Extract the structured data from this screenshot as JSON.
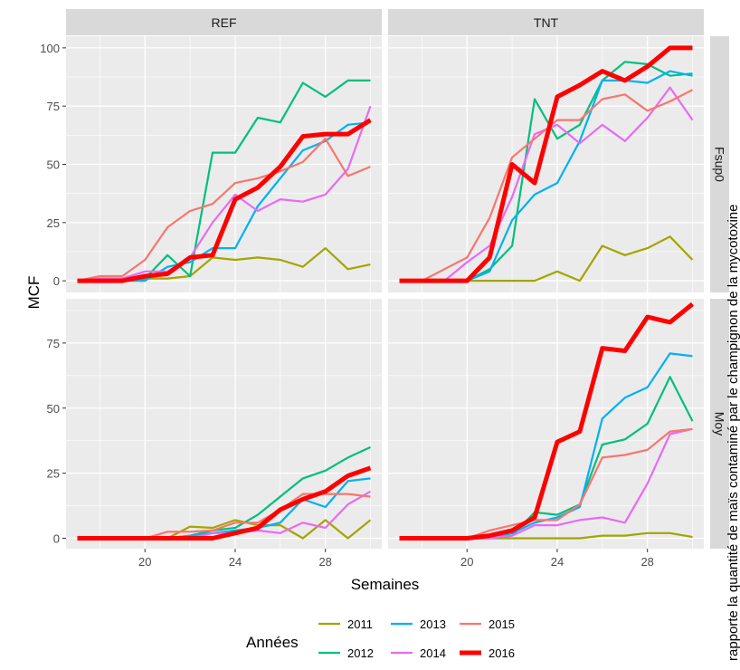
{
  "chart_data": {
    "type": "line",
    "xlabel": "Semaines",
    "ylabel": "MCF",
    "x": [
      17,
      18,
      19,
      20,
      21,
      22,
      23,
      24,
      25,
      26,
      27,
      28,
      29,
      30
    ],
    "x_ticks": [
      20,
      24,
      28
    ],
    "xlim": [
      16.5,
      30.5
    ],
    "facet_columns": [
      "REF",
      "TNT"
    ],
    "facet_rows": [
      "Fsup0",
      "Moy"
    ],
    "grid": true,
    "legend": {
      "title": "Années",
      "position": "bottom",
      "entries": [
        "2011",
        "2012",
        "2013",
        "2014",
        "2015",
        "2016"
      ]
    },
    "colors": {
      "2011": "#a3a500",
      "2012": "#00bf7d",
      "2013": "#00b0f6",
      "2014": "#e76bf3",
      "2015": "#f8766d",
      "2016": "#ff0000",
      "panel_bg": "#ebebeb",
      "strip_bg": "#d9d9d9",
      "grid": "#ffffff"
    },
    "panels": [
      {
        "column": "REF",
        "row": "Fsup0",
        "ylim": [
          -5,
          105
        ],
        "y_ticks": [
          0,
          25,
          50,
          75,
          100
        ],
        "series": [
          {
            "name": "2011",
            "values": [
              0,
              0,
              0,
              1,
              1,
              2,
              10,
              9,
              10,
              9,
              6,
              14,
              5,
              7
            ]
          },
          {
            "name": "2012",
            "values": [
              0,
              0,
              0,
              1,
              11,
              2,
              55,
              55,
              70,
              68,
              85,
              79,
              86,
              86
            ]
          },
          {
            "name": "2013",
            "values": [
              0,
              0,
              0,
              0,
              6,
              8,
              14,
              14,
              32,
              44,
              56,
              60,
              67,
              68
            ]
          },
          {
            "name": "2014",
            "values": [
              0,
              1,
              1,
              4,
              4,
              10,
              25,
              37,
              30,
              35,
              34,
              37,
              48,
              75
            ]
          },
          {
            "name": "2015",
            "values": [
              0,
              2,
              2,
              9,
              23,
              30,
              33,
              42,
              44,
              47,
              51,
              61,
              45,
              49
            ]
          },
          {
            "name": "2016",
            "values": [
              0,
              0,
              0,
              2,
              3,
              10,
              11,
              35,
              40,
              49,
              62,
              63,
              63,
              69
            ]
          }
        ]
      },
      {
        "column": "TNT",
        "row": "Fsup0",
        "ylim": [
          -5,
          105
        ],
        "y_ticks": [
          0,
          25,
          50,
          75,
          100
        ],
        "series": [
          {
            "name": "2011",
            "values": [
              0,
              0,
              0,
              0,
              0,
              0,
              0,
              4,
              0,
              15,
              11,
              14,
              19,
              9
            ]
          },
          {
            "name": "2012",
            "values": [
              0,
              0,
              0,
              0,
              5,
              15,
              78,
              61,
              67,
              86,
              94,
              93,
              88,
              89
            ]
          },
          {
            "name": "2013",
            "values": [
              0,
              0,
              0,
              0,
              4,
              26,
              37,
              42,
              60,
              86,
              86,
              85,
              90,
              88
            ]
          },
          {
            "name": "2014",
            "values": [
              0,
              0,
              0,
              8,
              15,
              36,
              63,
              67,
              59,
              67,
              60,
              70,
              83,
              69
            ]
          },
          {
            "name": "2015",
            "values": [
              0,
              0,
              5,
              10,
              27,
              53,
              61,
              69,
              69,
              78,
              80,
              73,
              77,
              82
            ]
          },
          {
            "name": "2016",
            "values": [
              0,
              0,
              0,
              0,
              10,
              50,
              42,
              79,
              84,
              90,
              86,
              92,
              100,
              100
            ]
          }
        ]
      },
      {
        "column": "REF",
        "row": "Moy",
        "ylim": [
          -4,
          92
        ],
        "y_ticks": [
          0,
          25,
          50,
          75
        ],
        "series": [
          {
            "name": "2011",
            "values": [
              0,
              0,
              0,
              0,
              0,
              4.5,
              4,
              7,
              5,
              5,
              0,
              7,
              0,
              7
            ]
          },
          {
            "name": "2012",
            "values": [
              0,
              0,
              0,
              0,
              0,
              1,
              3,
              4,
              9,
              16,
              23,
              26,
              31,
              35
            ]
          },
          {
            "name": "2013",
            "values": [
              0,
              0,
              0,
              0,
              0,
              1,
              2,
              3,
              4,
              6,
              15,
              12,
              22,
              23
            ]
          },
          {
            "name": "2014",
            "values": [
              0,
              0,
              0,
              0,
              0,
              0,
              2,
              2,
              3,
              2,
              6,
              4,
              13,
              18
            ]
          },
          {
            "name": "2015",
            "values": [
              0,
              0,
              0,
              0,
              2.5,
              2.5,
              3,
              6,
              6,
              11,
              17,
              17,
              17,
              16
            ]
          },
          {
            "name": "2016",
            "values": [
              0,
              0,
              0,
              0,
              0,
              0,
              0,
              2,
              4,
              11,
              15,
              18,
              24,
              27
            ]
          }
        ]
      },
      {
        "column": "TNT",
        "row": "Moy",
        "ylim": [
          -4,
          92
        ],
        "y_ticks": [
          0,
          25,
          50,
          75
        ],
        "series": [
          {
            "name": "2011",
            "values": [
              0,
              0,
              0,
              0,
              0,
              0,
              0,
              0,
              0,
              1,
              1,
              2,
              2,
              0.5
            ]
          },
          {
            "name": "2012",
            "values": [
              0,
              0,
              0,
              0,
              0,
              1,
              10,
              9,
              13,
              36,
              38,
              44,
              62,
              45
            ]
          },
          {
            "name": "2013",
            "values": [
              0,
              0,
              0,
              0,
              0,
              2,
              6,
              8,
              12,
              46,
              54,
              58,
              71,
              70
            ]
          },
          {
            "name": "2014",
            "values": [
              0,
              0,
              0,
              0,
              0,
              1,
              5,
              5,
              7,
              8,
              6,
              21,
              40,
              42
            ]
          },
          {
            "name": "2015",
            "values": [
              0,
              0,
              0,
              0,
              3,
              5,
              7,
              7,
              13,
              31,
              32,
              34,
              41,
              42
            ]
          },
          {
            "name": "2016",
            "values": [
              0,
              0,
              0,
              0,
              1,
              3,
              8,
              37,
              41,
              73,
              72,
              85,
              83,
              90
            ]
          }
        ]
      }
    ]
  },
  "edge_note": "rapporte la quantité de maïs contaminé par le champignon de la mycotoxine"
}
